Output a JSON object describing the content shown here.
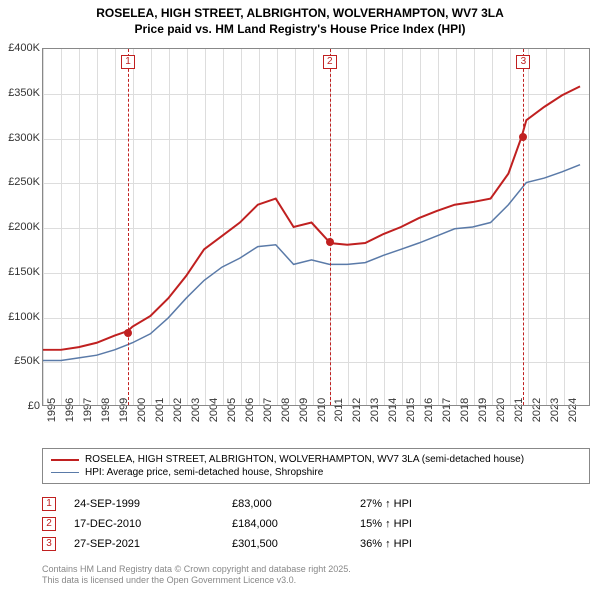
{
  "title_line1": "ROSELEA, HIGH STREET, ALBRIGHTON, WOLVERHAMPTON, WV7 3LA",
  "title_line2": "Price paid vs. HM Land Registry's House Price Index (HPI)",
  "chart": {
    "type": "line",
    "x_years": [
      1995,
      1996,
      1997,
      1998,
      1999,
      2000,
      2001,
      2002,
      2003,
      2004,
      2005,
      2006,
      2007,
      2008,
      2009,
      2010,
      2011,
      2012,
      2013,
      2014,
      2015,
      2016,
      2017,
      2018,
      2019,
      2020,
      2021,
      2022,
      2023,
      2024
    ],
    "xlim": [
      1995,
      2025.5
    ],
    "ylim": [
      0,
      400000
    ],
    "ytick_step": 50000,
    "ytick_labels": [
      "£0",
      "£50K",
      "£100K",
      "£150K",
      "£200K",
      "£250K",
      "£300K",
      "£350K",
      "£400K"
    ],
    "grid_color": "#dddddd",
    "border_color": "#888888",
    "background_color": "#ffffff",
    "series": [
      {
        "name": "ROSELEA, HIGH STREET, ALBRIGHTON, WOLVERHAMPTON, WV7 3LA (semi-detached house)",
        "color": "#c02020",
        "width": 2,
        "data": [
          [
            1995,
            62000
          ],
          [
            1996,
            62000
          ],
          [
            1997,
            65000
          ],
          [
            1998,
            70000
          ],
          [
            1999,
            78000
          ],
          [
            1999.73,
            83000
          ],
          [
            2000,
            88000
          ],
          [
            2001,
            100000
          ],
          [
            2002,
            120000
          ],
          [
            2003,
            145000
          ],
          [
            2004,
            175000
          ],
          [
            2005,
            190000
          ],
          [
            2006,
            205000
          ],
          [
            2007,
            225000
          ],
          [
            2008,
            232000
          ],
          [
            2009,
            200000
          ],
          [
            2010,
            205000
          ],
          [
            2010.95,
            184000
          ],
          [
            2011,
            182000
          ],
          [
            2012,
            180000
          ],
          [
            2013,
            182000
          ],
          [
            2014,
            192000
          ],
          [
            2015,
            200000
          ],
          [
            2016,
            210000
          ],
          [
            2017,
            218000
          ],
          [
            2018,
            225000
          ],
          [
            2019,
            228000
          ],
          [
            2020,
            232000
          ],
          [
            2021,
            260000
          ],
          [
            2021.74,
            301500
          ],
          [
            2022,
            320000
          ],
          [
            2023,
            335000
          ],
          [
            2024,
            348000
          ],
          [
            2025,
            358000
          ]
        ]
      },
      {
        "name": "HPI: Average price, semi-detached house, Shropshire",
        "color": "#5a7aa8",
        "width": 1.5,
        "data": [
          [
            1995,
            50000
          ],
          [
            1996,
            50000
          ],
          [
            1997,
            53000
          ],
          [
            1998,
            56000
          ],
          [
            1999,
            62000
          ],
          [
            2000,
            70000
          ],
          [
            2001,
            80000
          ],
          [
            2002,
            98000
          ],
          [
            2003,
            120000
          ],
          [
            2004,
            140000
          ],
          [
            2005,
            155000
          ],
          [
            2006,
            165000
          ],
          [
            2007,
            178000
          ],
          [
            2008,
            180000
          ],
          [
            2009,
            158000
          ],
          [
            2010,
            163000
          ],
          [
            2011,
            158000
          ],
          [
            2012,
            158000
          ],
          [
            2013,
            160000
          ],
          [
            2014,
            168000
          ],
          [
            2015,
            175000
          ],
          [
            2016,
            182000
          ],
          [
            2017,
            190000
          ],
          [
            2018,
            198000
          ],
          [
            2019,
            200000
          ],
          [
            2020,
            205000
          ],
          [
            2021,
            225000
          ],
          [
            2022,
            250000
          ],
          [
            2023,
            255000
          ],
          [
            2024,
            262000
          ],
          [
            2025,
            270000
          ]
        ]
      }
    ],
    "markers": [
      {
        "index": "1",
        "year": 1999.73,
        "price": 83000
      },
      {
        "index": "2",
        "year": 2010.96,
        "price": 184000
      },
      {
        "index": "3",
        "year": 2021.74,
        "price": 301500
      }
    ]
  },
  "legend": {
    "rows": [
      {
        "color": "#c02020",
        "width": 2,
        "label": "ROSELEA, HIGH STREET, ALBRIGHTON, WOLVERHAMPTON, WV7 3LA (semi-detached house)"
      },
      {
        "color": "#5a7aa8",
        "width": 1.5,
        "label": "HPI: Average price, semi-detached house, Shropshire"
      }
    ]
  },
  "sales": [
    {
      "idx": "1",
      "date": "24-SEP-1999",
      "price": "£83,000",
      "hpi": "27% ↑ HPI"
    },
    {
      "idx": "2",
      "date": "17-DEC-2010",
      "price": "£184,000",
      "hpi": "15% ↑ HPI"
    },
    {
      "idx": "3",
      "date": "27-SEP-2021",
      "price": "£301,500",
      "hpi": "36% ↑ HPI"
    }
  ],
  "footer_line1": "Contains HM Land Registry data © Crown copyright and database right 2025.",
  "footer_line2": "This data is licensed under the Open Government Licence v3.0."
}
